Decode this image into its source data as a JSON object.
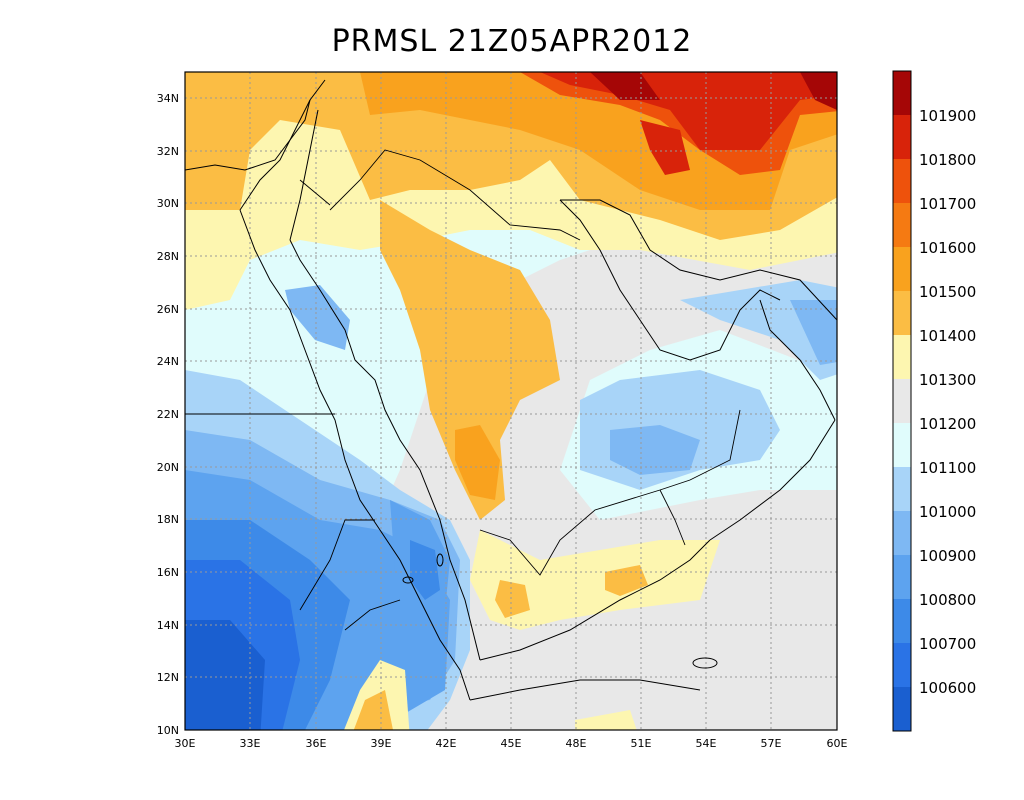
{
  "title": "PRMSL 21Z05APR2012",
  "axes": {
    "x_ticks": [
      "30E",
      "33E",
      "36E",
      "39E",
      "42E",
      "45E",
      "48E",
      "51E",
      "54E",
      "57E",
      "60E"
    ],
    "y_ticks": [
      "10N",
      "12N",
      "14N",
      "16N",
      "18N",
      "20N",
      "22N",
      "24N",
      "26N",
      "28N",
      "30N",
      "32N",
      "34N"
    ]
  },
  "colorbar": {
    "labels": [
      "100600",
      "100700",
      "100800",
      "100900",
      "101000",
      "101100",
      "101200",
      "101300",
      "101400",
      "101500",
      "101600",
      "101700",
      "101800",
      "101900"
    ],
    "colors": [
      "#1a5fd0",
      "#2a73e6",
      "#3d8ae8",
      "#5da3ef",
      "#7eb8f3",
      "#a8d4f8",
      "#e0fcfc",
      "#e8e8e8",
      "#fdf6b0",
      "#fbbd44",
      "#f9a21e",
      "#f57a12",
      "#ee520c",
      "#d8230a",
      "#a50606"
    ]
  },
  "map": {
    "region": "Arabian Peninsula",
    "lon_range": [
      30,
      60
    ],
    "lat_range": [
      10,
      35
    ],
    "grid": true,
    "field": "PRMSL"
  }
}
